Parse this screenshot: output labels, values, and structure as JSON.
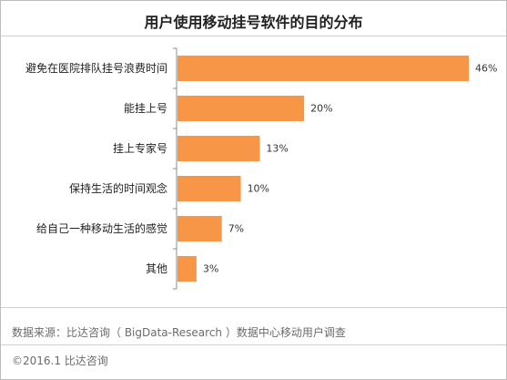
{
  "chart_data": {
    "type": "bar",
    "orientation": "horizontal",
    "title": "用户使用移动挂号软件的目的分布",
    "categories": [
      "避免在医院排队挂号浪费时间",
      "能挂上号",
      "挂上专家号",
      "保持生活的时间观念",
      "给自己一种移动生活的感觉",
      "其他"
    ],
    "values": [
      46,
      20,
      13,
      10,
      7,
      3
    ],
    "value_labels": [
      "46%",
      "20%",
      "13%",
      "10%",
      "7%",
      "3%"
    ],
    "unit": "%",
    "xlim": [
      0,
      46
    ],
    "grid": false,
    "legend": "none",
    "bar_color": "#f79646"
  },
  "footer": {
    "source": "数据来源：比达咨询（ BigData-Research ）数据中心移动用户调查",
    "copyright": "©2016.1  比达咨询"
  }
}
